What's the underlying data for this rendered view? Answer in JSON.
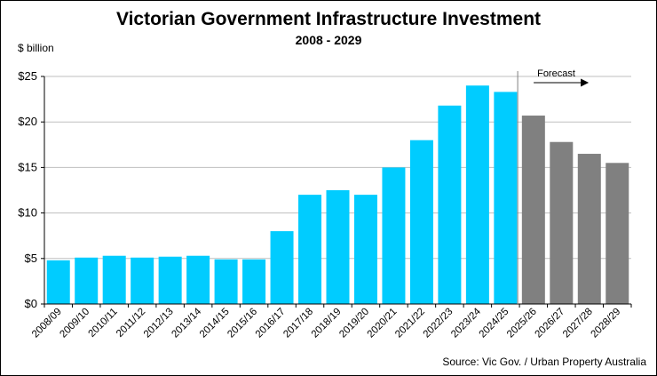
{
  "chart_data": {
    "type": "bar",
    "title": "Victorian Government Infrastructure Investment",
    "subtitle": "2008 - 2029",
    "ylabel": "$ billion",
    "xlabel": "",
    "ylim": [
      0,
      25
    ],
    "yticks": [
      "$0",
      "$5",
      "$10",
      "$15",
      "$20",
      "$25"
    ],
    "ytick_values": [
      0,
      5,
      10,
      15,
      20,
      25
    ],
    "grid": true,
    "categories": [
      "2008/09",
      "2009/10",
      "2010/11",
      "2011/12",
      "2012/13",
      "2013/14",
      "2014/15",
      "2015/16",
      "2016/17",
      "2017/18",
      "2018/19",
      "2019/20",
      "2020/21",
      "2021/22",
      "2022/23",
      "2023/24",
      "2024/25",
      "2025/26",
      "2026/27",
      "2027/28",
      "2028/29"
    ],
    "values": [
      4.8,
      5.1,
      5.3,
      5.1,
      5.2,
      5.3,
      4.9,
      4.9,
      8.0,
      12.0,
      12.5,
      12.0,
      15.0,
      18.0,
      21.8,
      24.0,
      23.3,
      20.7,
      17.8,
      16.5,
      15.5
    ],
    "forecast_start_index": 17,
    "forecast_label": "Forecast",
    "colors": {
      "actual": "#00CCFF",
      "forecast": "#808080"
    }
  },
  "source": "Source: Vic Gov. / Urban Property Australia"
}
